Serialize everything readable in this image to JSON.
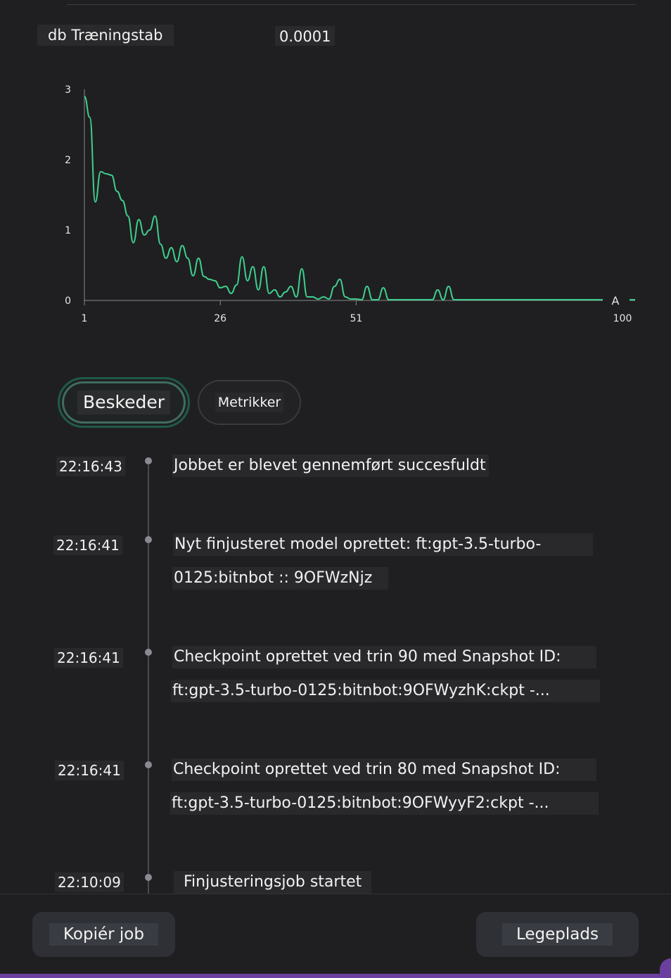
{
  "metric": {
    "label": "db Træningstab",
    "value": "0.0001"
  },
  "chart_data": {
    "type": "line",
    "xlabel": "",
    "ylabel": "",
    "ylim": [
      0,
      3
    ],
    "xlim": [
      1,
      100
    ],
    "yticks": [
      "0",
      "1",
      "2",
      "3"
    ],
    "xticks": [
      "1",
      "26",
      "51",
      "100"
    ],
    "marker_label": "A",
    "grid": false,
    "color": "#3fcf8e",
    "series": [
      {
        "x": [
          1,
          2,
          3,
          4,
          5,
          6,
          7,
          8,
          9,
          10,
          11,
          12,
          13,
          14,
          15,
          16,
          17,
          18,
          19,
          20,
          21,
          22,
          23,
          24,
          25,
          26,
          27,
          28,
          29,
          30,
          31,
          32,
          33,
          34,
          35,
          36,
          37,
          38,
          39,
          40,
          41,
          42,
          43,
          44,
          45,
          46,
          47,
          48,
          49,
          50,
          51,
          52,
          53,
          54,
          55,
          56,
          57,
          58,
          59,
          60,
          61,
          62,
          63,
          64,
          65,
          66,
          67,
          68,
          69,
          70,
          71,
          72,
          73,
          74,
          75,
          76,
          77,
          78,
          79,
          80,
          81,
          82,
          83,
          84,
          85,
          86,
          87,
          88,
          89,
          90,
          91,
          92,
          93,
          94,
          95,
          96,
          97,
          98,
          99,
          100
        ],
        "y": [
          2.9,
          2.6,
          1.4,
          1.83,
          1.8,
          1.78,
          1.55,
          1.42,
          1.2,
          0.82,
          1.15,
          0.93,
          1.0,
          1.2,
          0.8,
          0.6,
          0.75,
          0.55,
          0.78,
          0.6,
          0.35,
          0.6,
          0.34,
          0.3,
          0.28,
          0.18,
          0.2,
          0.1,
          0.22,
          0.62,
          0.28,
          0.48,
          0.15,
          0.48,
          0.1,
          0.15,
          0.05,
          0.12,
          0.2,
          0.05,
          0.45,
          0.05,
          0.05,
          0.02,
          0.05,
          0.02,
          0.2,
          0.3,
          0.05,
          0.02,
          0.02,
          0.01,
          0.2,
          0.01,
          0.01,
          0.18,
          0.01,
          0.01,
          0.01,
          0.01,
          0.01,
          0.01,
          0.01,
          0.01,
          0.01,
          0.15,
          0.01,
          0.2,
          0.01,
          0.01,
          0.01,
          0.01,
          0.01,
          0.01,
          0.01,
          0.01,
          0.01,
          0.01,
          0.01,
          0.01,
          0.01,
          0.01,
          0.01,
          0.01,
          0.01,
          0.01,
          0.01,
          0.01,
          0.01,
          0.01,
          0.01,
          0.01,
          0.01,
          0.01,
          0.01,
          0.01,
          0.01,
          0.01,
          0.01,
          0.01
        ]
      }
    ]
  },
  "tabs": [
    {
      "label": "Beskeder",
      "active": true
    },
    {
      "label": "Metrikker",
      "active": false
    }
  ],
  "events": [
    {
      "time": "22:16:43",
      "lines": [
        "Jobbet er blevet gennemført succesfuldt"
      ]
    },
    {
      "time": "22:16:41",
      "lines": [
        "Nyt finjusteret model oprettet: ft:gpt-3.5-turbo-",
        "0125:bitnbot :: 9OFWzNjz"
      ]
    },
    {
      "time": "22:16:41",
      "lines": [
        "Checkpoint oprettet ved trin 90 med Snapshot ID:",
        "ft:gpt-3.5-turbo-0125:bitnbot:9OFWyzhK:ckpt -..."
      ]
    },
    {
      "time": "22:16:41",
      "lines": [
        "Checkpoint oprettet ved trin 80 med Snapshot ID:",
        "ft:gpt-3.5-turbo-0125:bitnbot:9OFWyyF2:ckpt -..."
      ]
    },
    {
      "time": "22:10:09",
      "lines": [
        "Finjusteringsjob startet"
      ]
    }
  ],
  "buttons": {
    "copy_job": "Kopiér job",
    "playground": "Legeplads"
  }
}
